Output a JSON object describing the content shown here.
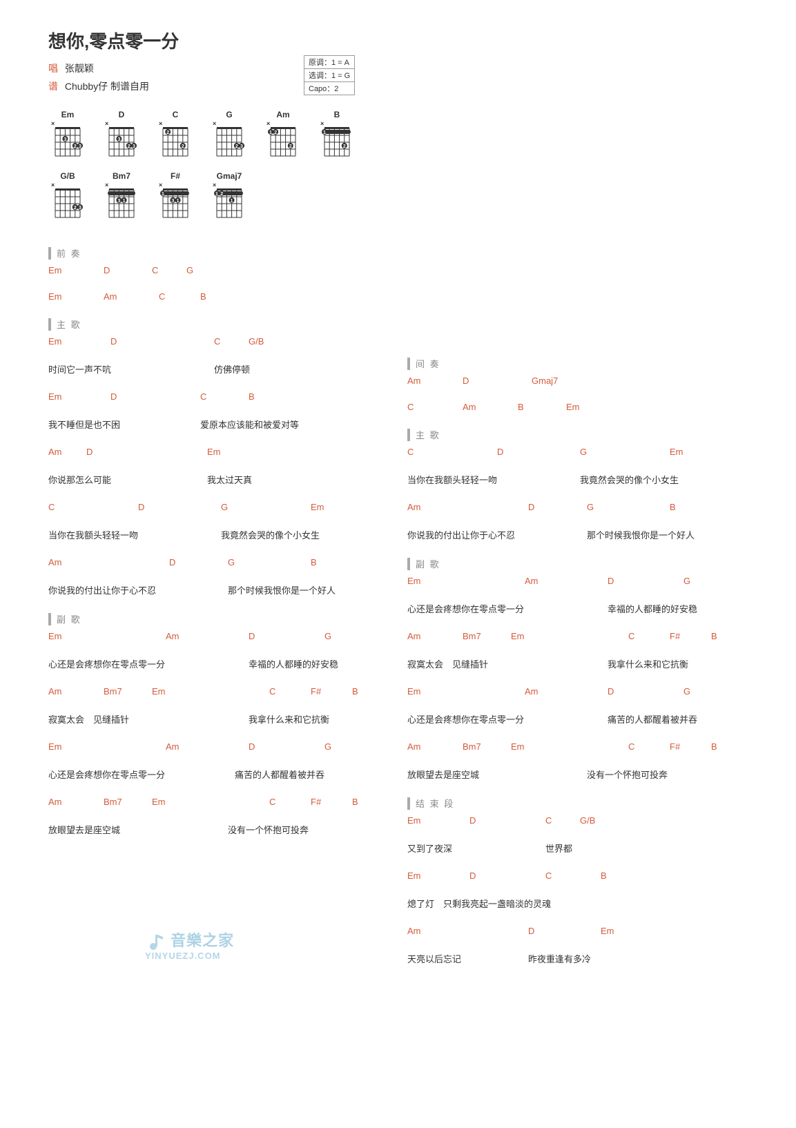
{
  "title": "想你,零点零一分",
  "meta": {
    "singer_label": "唱",
    "singer": "张靓颖",
    "tab_label": "谱",
    "tab_author": "Chubby仔 制谱自用"
  },
  "keybox": {
    "original": "原调：1 = A",
    "selected": "选调：1 = G",
    "capo": "Capo：2"
  },
  "chord_diagrams": {
    "row1": [
      "Em",
      "D",
      "C",
      "G",
      "Am",
      "B"
    ],
    "row2": [
      "G/B",
      "Bm7",
      "F#",
      "Gmaj7"
    ]
  },
  "sections": {
    "intro": "前 奏",
    "verse": "主 歌",
    "chorus": "副 歌",
    "interlude": "间 奏",
    "ending": "结 束 段"
  },
  "col1": [
    {
      "type": "section",
      "key": "intro"
    },
    {
      "type": "chords",
      "items": [
        [
          "Em",
          0
        ],
        [
          "D",
          80
        ],
        [
          "C",
          150
        ],
        [
          "G",
          200
        ]
      ]
    },
    {
      "type": "chords",
      "items": [
        [
          "Em",
          0
        ],
        [
          "Am",
          80
        ],
        [
          "C",
          160
        ],
        [
          "B",
          220
        ]
      ]
    },
    {
      "type": "section",
      "key": "verse"
    },
    {
      "type": "chords",
      "items": [
        [
          "Em",
          0
        ],
        [
          "D",
          90
        ],
        [
          "C",
          240
        ],
        [
          "G/B",
          290
        ]
      ]
    },
    {
      "type": "lyrics",
      "items": [
        [
          "时间它一声不吭",
          0
        ],
        [
          "仿佛停顿",
          240
        ]
      ]
    },
    {
      "type": "chords",
      "items": [
        [
          "Em",
          0
        ],
        [
          "D",
          90
        ],
        [
          "C",
          220
        ],
        [
          "B",
          290
        ]
      ]
    },
    {
      "type": "lyrics",
      "items": [
        [
          "我不睡但是也不困",
          0
        ],
        [
          "爱原本应该能和被爱对等",
          220
        ]
      ]
    },
    {
      "type": "chords",
      "items": [
        [
          "Am",
          0
        ],
        [
          "D",
          55
        ],
        [
          "Em",
          230
        ]
      ]
    },
    {
      "type": "lyrics",
      "items": [
        [
          "你说那怎么可能",
          0
        ],
        [
          "我太过天真",
          230
        ]
      ]
    },
    {
      "type": "chords",
      "items": [
        [
          "C",
          0
        ],
        [
          "D",
          130
        ],
        [
          "G",
          250
        ],
        [
          "Em",
          380
        ]
      ]
    },
    {
      "type": "lyrics",
      "items": [
        [
          "当你在我额头轻轻一吻",
          0
        ],
        [
          "我竟然会哭的像个小女生",
          250
        ]
      ]
    },
    {
      "type": "chords",
      "items": [
        [
          "Am",
          0
        ],
        [
          "D",
          175
        ],
        [
          "G",
          260
        ],
        [
          "B",
          380
        ]
      ]
    },
    {
      "type": "lyrics",
      "items": [
        [
          "你说我的付出让你于心不忍",
          0
        ],
        [
          "那个时候我恨你是一个好人",
          260
        ]
      ]
    },
    {
      "type": "section",
      "key": "chorus"
    },
    {
      "type": "chords",
      "items": [
        [
          "Em",
          0
        ],
        [
          "Am",
          170
        ],
        [
          "D",
          290
        ],
        [
          "G",
          400
        ]
      ]
    },
    {
      "type": "lyrics",
      "items": [
        [
          "心还是会疼想你在零点零一分",
          0
        ],
        [
          "幸福的人都睡的好安稳",
          290
        ]
      ]
    },
    {
      "type": "chords",
      "items": [
        [
          "Am",
          0
        ],
        [
          "Bm7",
          80
        ],
        [
          "Em",
          150
        ],
        [
          "C",
          320
        ],
        [
          "F#",
          380
        ],
        [
          "B",
          440
        ]
      ]
    },
    {
      "type": "lyrics",
      "items": [
        [
          "寂寞太会　见缝插针",
          0
        ],
        [
          "我拿什么来和它抗衡",
          290
        ]
      ]
    },
    {
      "type": "chords",
      "items": [
        [
          "Em",
          0
        ],
        [
          "Am",
          170
        ],
        [
          "D",
          290
        ],
        [
          "G",
          400
        ]
      ]
    },
    {
      "type": "lyrics",
      "items": [
        [
          "心还是会疼想你在零点零一分",
          0
        ],
        [
          "痛苦的人都醒着被并吞",
          270
        ]
      ]
    },
    {
      "type": "chords",
      "items": [
        [
          "Am",
          0
        ],
        [
          "Bm7",
          80
        ],
        [
          "Em",
          150
        ],
        [
          "C",
          320
        ],
        [
          "F#",
          380
        ],
        [
          "B",
          440
        ]
      ]
    },
    {
      "type": "lyrics",
      "items": [
        [
          "放眼望去是座空城",
          0
        ],
        [
          "没有一个怀抱可投奔",
          260
        ]
      ]
    }
  ],
  "col2": [
    {
      "type": "section",
      "key": "interlude"
    },
    {
      "type": "chords",
      "items": [
        [
          "Am",
          0
        ],
        [
          "D",
          80
        ],
        [
          "Gmaj7",
          180
        ]
      ]
    },
    {
      "type": "chords",
      "items": [
        [
          "C",
          0
        ],
        [
          "Am",
          80
        ],
        [
          "B",
          160
        ],
        [
          "Em",
          230
        ]
      ]
    },
    {
      "type": "section",
      "key": "verse"
    },
    {
      "type": "chords",
      "items": [
        [
          "C",
          0
        ],
        [
          "D",
          130
        ],
        [
          "G",
          250
        ],
        [
          "Em",
          380
        ]
      ]
    },
    {
      "type": "lyrics",
      "items": [
        [
          "当你在我额头轻轻一吻",
          0
        ],
        [
          "我竟然会哭的像个小女生",
          250
        ]
      ]
    },
    {
      "type": "chords",
      "items": [
        [
          "Am",
          0
        ],
        [
          "D",
          175
        ],
        [
          "G",
          260
        ],
        [
          "B",
          380
        ]
      ]
    },
    {
      "type": "lyrics",
      "items": [
        [
          "你说我的付出让你于心不忍",
          0
        ],
        [
          "那个时候我恨你是一个好人",
          260
        ]
      ]
    },
    {
      "type": "section",
      "key": "chorus"
    },
    {
      "type": "chords",
      "items": [
        [
          "Em",
          0
        ],
        [
          "Am",
          170
        ],
        [
          "D",
          290
        ],
        [
          "G",
          400
        ]
      ]
    },
    {
      "type": "lyrics",
      "items": [
        [
          "心还是会疼想你在零点零一分",
          0
        ],
        [
          "幸福的人都睡的好安稳",
          290
        ]
      ]
    },
    {
      "type": "chords",
      "items": [
        [
          "Am",
          0
        ],
        [
          "Bm7",
          80
        ],
        [
          "Em",
          150
        ],
        [
          "C",
          320
        ],
        [
          "F#",
          380
        ],
        [
          "B",
          440
        ]
      ]
    },
    {
      "type": "lyrics",
      "items": [
        [
          "寂寞太会　见缝插针",
          0
        ],
        [
          "我拿什么来和它抗衡",
          290
        ]
      ]
    },
    {
      "type": "chords",
      "items": [
        [
          "Em",
          0
        ],
        [
          "Am",
          170
        ],
        [
          "D",
          290
        ],
        [
          "G",
          400
        ]
      ]
    },
    {
      "type": "lyrics",
      "items": [
        [
          "心还是会疼想你在零点零一分",
          0
        ],
        [
          "痛苦的人都醒着被并吞",
          290
        ]
      ]
    },
    {
      "type": "chords",
      "items": [
        [
          "Am",
          0
        ],
        [
          "Bm7",
          80
        ],
        [
          "Em",
          150
        ],
        [
          "C",
          320
        ],
        [
          "F#",
          380
        ],
        [
          "B",
          440
        ]
      ]
    },
    {
      "type": "lyrics",
      "items": [
        [
          "放眼望去是座空城",
          0
        ],
        [
          "没有一个怀抱可投奔",
          260
        ]
      ]
    },
    {
      "type": "section",
      "key": "ending"
    },
    {
      "type": "chords",
      "items": [
        [
          "Em",
          0
        ],
        [
          "D",
          90
        ],
        [
          "C",
          200
        ],
        [
          "G/B",
          250
        ]
      ]
    },
    {
      "type": "lyrics",
      "items": [
        [
          "又到了夜深",
          0
        ],
        [
          "世界都",
          200
        ]
      ]
    },
    {
      "type": "chords",
      "items": [
        [
          "Em",
          0
        ],
        [
          "D",
          90
        ],
        [
          "C",
          200
        ],
        [
          "B",
          280
        ]
      ]
    },
    {
      "type": "lyrics",
      "items": [
        [
          "熄了灯　只剩我亮起一盏暗淡的灵魂",
          0
        ]
      ]
    },
    {
      "type": "chords",
      "items": [
        [
          "Am",
          0
        ],
        [
          "D",
          175
        ],
        [
          "Em",
          280
        ]
      ]
    },
    {
      "type": "lyrics",
      "items": [
        [
          "天亮以后忘记",
          0
        ],
        [
          "昨夜重逢有多冷",
          175
        ]
      ]
    }
  ],
  "watermark": {
    "top": "音樂之家",
    "bottom": "YINYUEZJ.COM"
  },
  "diagram_style": {
    "width": 56,
    "height": 58,
    "grid_color": "#333",
    "dot_radius": 4,
    "dot_color": "#333"
  }
}
